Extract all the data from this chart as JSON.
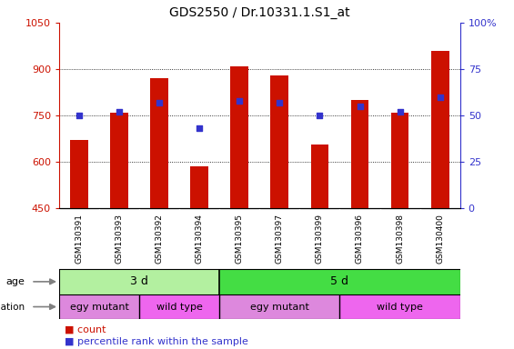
{
  "title": "GDS2550 / Dr.10331.1.S1_at",
  "samples": [
    "GSM130391",
    "GSM130393",
    "GSM130392",
    "GSM130394",
    "GSM130395",
    "GSM130397",
    "GSM130399",
    "GSM130396",
    "GSM130398",
    "GSM130400"
  ],
  "count_values": [
    670,
    760,
    870,
    585,
    910,
    880,
    655,
    800,
    760,
    960
  ],
  "percentile_values": [
    50,
    52,
    57,
    43,
    58,
    57,
    50,
    55,
    52,
    60
  ],
  "ylim_left": [
    450,
    1050
  ],
  "ylim_right": [
    0,
    100
  ],
  "yticks_left": [
    450,
    600,
    750,
    900,
    1050
  ],
  "yticks_right": [
    0,
    25,
    50,
    75,
    100
  ],
  "bar_color": "#cc1100",
  "dot_color": "#3333cc",
  "bar_bottom": 450,
  "age_groups": [
    {
      "label": "3 d",
      "start": 0,
      "end": 4,
      "color": "#b3f0a0"
    },
    {
      "label": "5 d",
      "start": 4,
      "end": 10,
      "color": "#44dd44"
    }
  ],
  "genotype_groups": [
    {
      "label": "egy mutant",
      "start": 0,
      "end": 2,
      "color": "#dd88dd"
    },
    {
      "label": "wild type",
      "start": 2,
      "end": 4,
      "color": "#ee66ee"
    },
    {
      "label": "egy mutant",
      "start": 4,
      "end": 7,
      "color": "#dd88dd"
    },
    {
      "label": "wild type",
      "start": 7,
      "end": 10,
      "color": "#ee66ee"
    }
  ],
  "legend_count_label": "count",
  "legend_percentile_label": "percentile rank within the sample",
  "bar_color_red": "#cc1100",
  "dot_color_blue": "#3333cc",
  "tick_area_bg": "#cccccc",
  "fig_width": 5.65,
  "fig_height": 3.84,
  "dpi": 100
}
